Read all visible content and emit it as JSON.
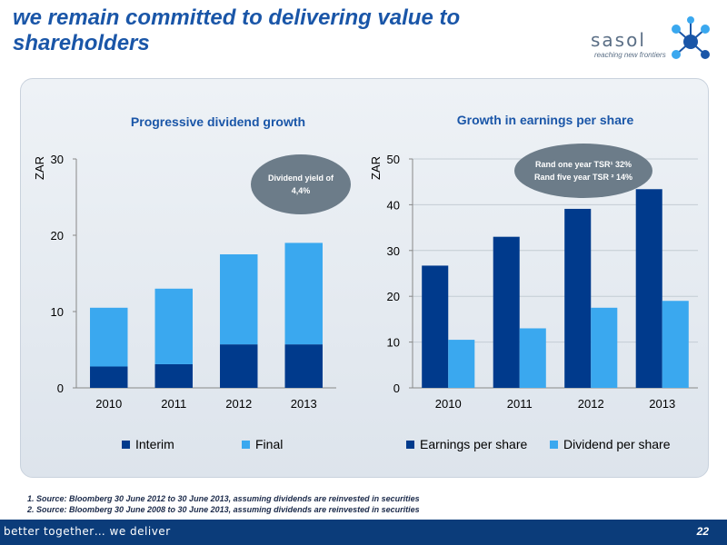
{
  "slide": {
    "title": "we remain committed to delivering value to shareholders",
    "logo_text": "sasol",
    "logo_tagline": "reaching new frontiers",
    "page_number": "22",
    "footer_text": "better together… we deliver",
    "footnotes": [
      "1. Source: Bloomberg 30 June 2012 to 30 June 2013, assuming dividends are reinvested in securities",
      "2. Source: Bloomberg 30 June 2008 to 30 June 2013, assuming dividends are reinvested in securities"
    ]
  },
  "colors": {
    "dark_blue": "#003a8c",
    "light_blue": "#3aa8ef",
    "title_blue": "#1a56a8",
    "bubble_grey": "#6c7c89"
  },
  "annotations": {
    "left_bubble": {
      "line1": "Dividend yield  of",
      "line2": "4,4%"
    },
    "right_bubble": {
      "line1": "Rand one year TSR¹ 32%",
      "line2": "Rand five year TSR ² 14%"
    }
  },
  "chart_data": [
    {
      "type": "bar",
      "stacked": true,
      "title": "Progressive dividend growth",
      "ylabel": "ZAR",
      "ylim": [
        0,
        30
      ],
      "yticks": [
        0,
        10,
        20,
        30
      ],
      "categories": [
        "2010",
        "2011",
        "2012",
        "2013"
      ],
      "series": [
        {
          "name": "Interim",
          "color": "#003a8c",
          "values": [
            2.8,
            3.1,
            5.7,
            5.7
          ]
        },
        {
          "name": "Final",
          "color": "#3aa8ef",
          "values": [
            7.7,
            9.9,
            11.8,
            13.3
          ]
        }
      ],
      "legend": "bottom",
      "grid": false
    },
    {
      "type": "bar",
      "stacked": false,
      "title": "Growth in earnings per share",
      "ylabel": "ZAR",
      "ylim": [
        0,
        50
      ],
      "yticks": [
        0,
        10,
        20,
        30,
        40,
        50
      ],
      "categories": [
        "2010",
        "2011",
        "2012",
        "2013"
      ],
      "series": [
        {
          "name": "Earnings per share",
          "color": "#003a8c",
          "values": [
            26.7,
            33.0,
            39.1,
            43.4
          ]
        },
        {
          "name": "Dividend per share",
          "color": "#3aa8ef",
          "values": [
            10.5,
            13.0,
            17.5,
            19.0
          ]
        }
      ],
      "legend": "bottom",
      "grid": true
    }
  ]
}
